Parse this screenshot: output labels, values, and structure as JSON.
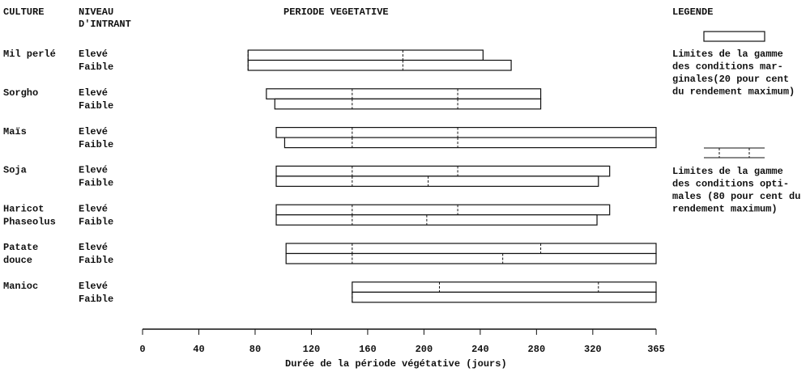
{
  "chart_data": {
    "type": "range-bar",
    "headers": {
      "crop": "CULTURE",
      "level": [
        "NIVEAU",
        "D'INTRANT"
      ],
      "period": "PERIODE VEGETATIVE",
      "legend": "LEGENDE"
    },
    "x_label": "Durée de la période végétative (jours)",
    "xlim": [
      0,
      365
    ],
    "xticks": [
      0,
      40,
      80,
      120,
      160,
      200,
      240,
      280,
      320,
      365
    ],
    "legend": {
      "marginal": [
        "Limites de la gamme",
        "des conditions mar-",
        "ginales(20 pour cent",
        "du rendement maximum)"
      ],
      "optimal": [
        "Limites de la gamme",
        "des conditions opti-",
        "males (80 pour cent du",
        "rendement maximum)"
      ]
    },
    "crops": [
      {
        "name": [
          "Mil perlé"
        ],
        "bars": [
          {
            "level": "Elevé",
            "start": 75,
            "end": 242,
            "opt_start": 75,
            "opt_end": 185
          },
          {
            "level": "Faible",
            "start": 75,
            "end": 262,
            "opt_start": 75,
            "opt_end": 185
          }
        ]
      },
      {
        "name": [
          "Sorgho"
        ],
        "bars": [
          {
            "level": "Elevé",
            "start": 88,
            "end": 283,
            "opt_start": 149,
            "opt_end": 224
          },
          {
            "level": "Faible",
            "start": 94,
            "end": 283,
            "opt_start": 149,
            "opt_end": 224
          }
        ]
      },
      {
        "name": [
          "Maïs"
        ],
        "bars": [
          {
            "level": "Elevé",
            "start": 95,
            "end": 365,
            "opt_start": 149,
            "opt_end": 224
          },
          {
            "level": "Faible",
            "start": 101,
            "end": 365,
            "opt_start": 149,
            "opt_end": 224
          }
        ]
      },
      {
        "name": [
          "Soja"
        ],
        "bars": [
          {
            "level": "Elevé",
            "start": 95,
            "end": 332,
            "opt_start": 149,
            "opt_end": 224
          },
          {
            "level": "Faible",
            "start": 95,
            "end": 324,
            "opt_start": 149,
            "opt_end": 203
          }
        ]
      },
      {
        "name": [
          "Haricot",
          "Phaseolus"
        ],
        "bars": [
          {
            "level": "Elevé",
            "start": 95,
            "end": 332,
            "opt_start": 149,
            "opt_end": 224
          },
          {
            "level": "Faible",
            "start": 95,
            "end": 323,
            "opt_start": 149,
            "opt_end": 202
          }
        ]
      },
      {
        "name": [
          "Patate",
          "douce"
        ],
        "bars": [
          {
            "level": "Elevé",
            "start": 102,
            "end": 365,
            "opt_start": 149,
            "opt_end": 283
          },
          {
            "level": "Faible",
            "start": 102,
            "end": 365,
            "opt_start": 149,
            "opt_end": 256
          }
        ]
      },
      {
        "name": [
          "Manioc"
        ],
        "bars": [
          {
            "level": "Elevé",
            "start": 149,
            "end": 365,
            "opt_start": 211,
            "opt_end": 324
          },
          {
            "level": "Faible",
            "start": 149,
            "end": 365,
            "opt_start": 149,
            "opt_end": 365
          }
        ]
      }
    ]
  }
}
